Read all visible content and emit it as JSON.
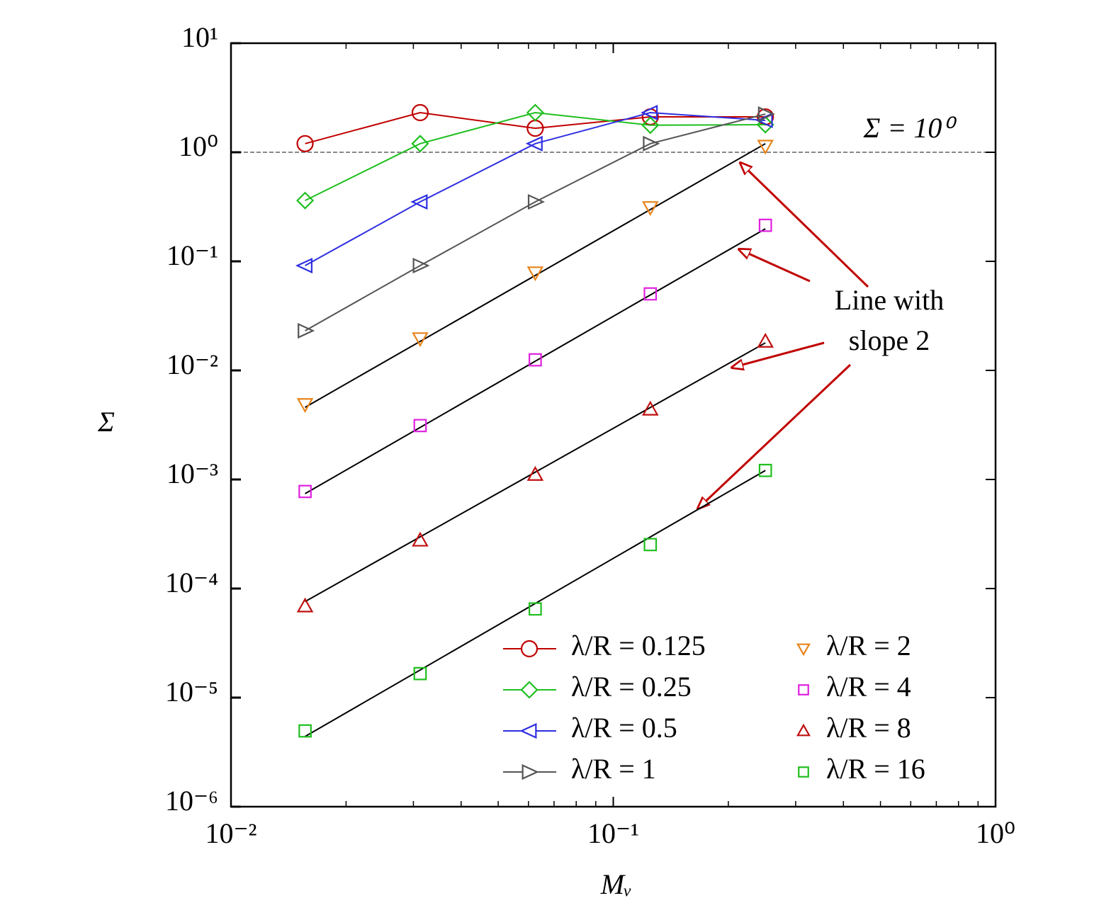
{
  "chart_data": {
    "type": "line",
    "xlabel": "Mᵥ",
    "ylabel": "Σ",
    "xscale": "log",
    "yscale": "log",
    "xlim": [
      0.01,
      1
    ],
    "ylim": [
      1e-06,
      10
    ],
    "xticks": [
      {
        "value": 0.01,
        "label": "10⁻²"
      },
      {
        "value": 0.1,
        "label": "10⁻¹"
      },
      {
        "value": 1,
        "label": "10⁰"
      }
    ],
    "yticks": [
      {
        "value": 1e-06,
        "label": "10⁻⁶"
      },
      {
        "value": 1e-05,
        "label": "10⁻⁵"
      },
      {
        "value": 0.0001,
        "label": "10⁻⁴"
      },
      {
        "value": 0.001,
        "label": "10⁻³"
      },
      {
        "value": 0.01,
        "label": "10⁻²"
      },
      {
        "value": 0.1,
        "label": "10⁻¹"
      },
      {
        "value": 1,
        "label": "10⁰"
      },
      {
        "value": 10,
        "label": "10¹"
      }
    ],
    "x": [
      0.015625,
      0.03125,
      0.0625,
      0.125,
      0.25
    ],
    "series": [
      {
        "name": "λ/R = 0.125",
        "color": "#c00000",
        "marker": "circle",
        "line": true,
        "values": [
          1.2,
          2.31,
          1.66,
          2.11,
          2.11
        ]
      },
      {
        "name": "λ/R = 0.25",
        "color": "#1fbf1f",
        "marker": "diamond",
        "line": true,
        "values": [
          0.361,
          1.2,
          2.31,
          1.77,
          1.79
        ]
      },
      {
        "name": "λ/R = 0.5",
        "color": "#2f2fe0",
        "marker": "triangle-left",
        "line": true,
        "values": [
          0.0914,
          0.351,
          1.2,
          2.31,
          1.96
        ]
      },
      {
        "name": "λ/R = 1",
        "color": "#555555",
        "marker": "triangle-right",
        "line": true,
        "values": [
          0.0231,
          0.0914,
          0.351,
          1.2,
          2.24
        ]
      },
      {
        "name": "λ/R = 2",
        "color": "#e8841a",
        "marker": "triangle-down",
        "line": false,
        "values": [
          0.00488,
          0.0196,
          0.0787,
          0.312,
          1.14
        ]
      },
      {
        "name": "λ/R = 4",
        "color": "#e020e0",
        "marker": "square",
        "line": false,
        "values": [
          0.000776,
          0.00312,
          0.0125,
          0.0503,
          0.214
        ]
      },
      {
        "name": "λ/R = 8",
        "color": "#c01010",
        "marker": "triangle-up",
        "line": false,
        "values": [
          6.9e-05,
          0.000277,
          0.00111,
          0.0044,
          0.01845
        ]
      },
      {
        "name": "λ/R = 16",
        "color": "#1fbf1f",
        "marker": "square",
        "line": false,
        "values": [
          4.95e-06,
          1.66e-05,
          6.5e-05,
          0.000253,
          0.00121
        ]
      }
    ],
    "reference_lines": [
      {
        "color": "#000000",
        "x": [
          0.015625,
          0.25
        ],
        "values": [
          0.00459,
          1.2
        ]
      },
      {
        "color": "#000000",
        "x": [
          0.015625,
          0.25
        ],
        "values": [
          0.000741,
          0.199
        ]
      },
      {
        "color": "#000000",
        "x": [
          0.015625,
          0.25
        ],
        "values": [
          7.6e-05,
          0.0179
        ]
      },
      {
        "color": "#000000",
        "x": [
          0.015625,
          0.25
        ],
        "values": [
          4.4e-06,
          0.00121
        ]
      }
    ],
    "hline": {
      "value": 1,
      "label": "Σ = 10⁰",
      "color": "#888888"
    },
    "annotation": {
      "lines": [
        "Line with",
        "slope 2"
      ],
      "color": "#c00000"
    },
    "legend": "lower right"
  }
}
